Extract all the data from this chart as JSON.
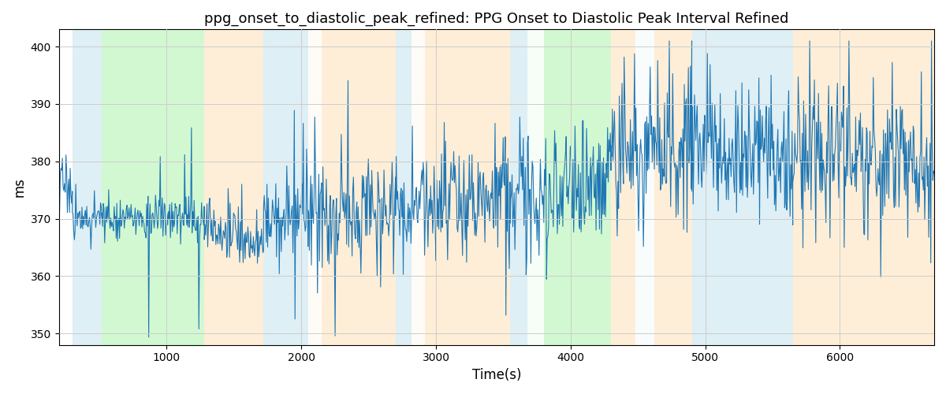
{
  "title": "ppg_onset_to_diastolic_peak_refined: PPG Onset to Diastolic Peak Interval Refined",
  "xlabel": "Time(s)",
  "ylabel": "ms",
  "xlim": [
    200,
    6700
  ],
  "ylim": [
    348,
    403
  ],
  "yticks": [
    350,
    360,
    370,
    380,
    390,
    400
  ],
  "background_bands": [
    {
      "xmin": 300,
      "xmax": 520,
      "color": "#add8e6",
      "alpha": 0.4
    },
    {
      "xmin": 520,
      "xmax": 1280,
      "color": "#90ee90",
      "alpha": 0.4
    },
    {
      "xmin": 1280,
      "xmax": 1720,
      "color": "#ffd59b",
      "alpha": 0.4
    },
    {
      "xmin": 1720,
      "xmax": 2050,
      "color": "#add8e6",
      "alpha": 0.4
    },
    {
      "xmin": 2050,
      "xmax": 2150,
      "color": "#ffd59b",
      "alpha": 0.07
    },
    {
      "xmin": 2150,
      "xmax": 2700,
      "color": "#ffd59b",
      "alpha": 0.4
    },
    {
      "xmin": 2700,
      "xmax": 2820,
      "color": "#add8e6",
      "alpha": 0.4
    },
    {
      "xmin": 2820,
      "xmax": 2920,
      "color": "#ffd59b",
      "alpha": 0.07
    },
    {
      "xmin": 2920,
      "xmax": 3550,
      "color": "#ffd59b",
      "alpha": 0.4
    },
    {
      "xmin": 3550,
      "xmax": 3680,
      "color": "#add8e6",
      "alpha": 0.4
    },
    {
      "xmin": 3680,
      "xmax": 3800,
      "color": "#90ee90",
      "alpha": 0.07
    },
    {
      "xmin": 3800,
      "xmax": 4300,
      "color": "#90ee90",
      "alpha": 0.4
    },
    {
      "xmin": 4300,
      "xmax": 4480,
      "color": "#ffd59b",
      "alpha": 0.4
    },
    {
      "xmin": 4480,
      "xmax": 4620,
      "color": "#add8e6",
      "alpha": 0.07
    },
    {
      "xmin": 4620,
      "xmax": 4900,
      "color": "#ffd59b",
      "alpha": 0.4
    },
    {
      "xmin": 4900,
      "xmax": 5650,
      "color": "#add8e6",
      "alpha": 0.4
    },
    {
      "xmin": 5650,
      "xmax": 6700,
      "color": "#ffd59b",
      "alpha": 0.4
    }
  ],
  "line_color": "#1f77b4",
  "line_width": 0.8,
  "grid_color": "#cccccc",
  "title_fontsize": 13,
  "seed": 17
}
